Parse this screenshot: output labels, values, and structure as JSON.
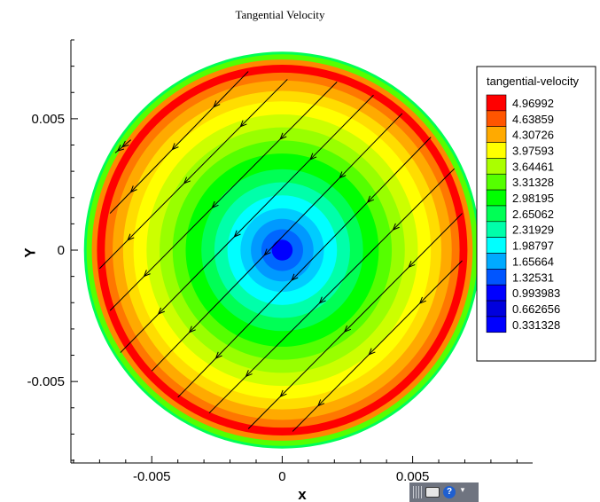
{
  "chart_data": {
    "type": "heatmap",
    "title": "Tangential Velocity",
    "xlabel": "x",
    "ylabel": "Y",
    "xlim": [
      -0.0081,
      0.0096
    ],
    "ylim": [
      -0.0081,
      0.008
    ],
    "x_ticks": [
      {
        "value": -0.005,
        "label": "-0.005"
      },
      {
        "value": 0,
        "label": "0"
      },
      {
        "value": 0.005,
        "label": "0.005"
      }
    ],
    "y_ticks": [
      {
        "value": 0.005,
        "label": "0.005"
      },
      {
        "value": 0,
        "label": "0"
      },
      {
        "value": -0.005,
        "label": "-0.005"
      }
    ],
    "domain": {
      "shape": "circle",
      "center": [
        0,
        0
      ],
      "radius": 0.0076
    },
    "contour_field": "tangential-velocity",
    "legend": {
      "title": "tangential-velocity",
      "placement": "right",
      "levels": [
        {
          "value": 4.96992,
          "label": "4.96992",
          "color": "#ff0000"
        },
        {
          "value": 4.63859,
          "label": "4.63859",
          "color": "#ff5500"
        },
        {
          "value": 4.30726,
          "label": "4.30726",
          "color": "#ffaa00"
        },
        {
          "value": 3.97593,
          "label": "3.97593",
          "color": "#ffff00"
        },
        {
          "value": 3.64461,
          "label": "3.64461",
          "color": "#aaff00"
        },
        {
          "value": 3.31328,
          "label": "3.31328",
          "color": "#55ff00"
        },
        {
          "value": 2.98195,
          "label": "2.98195",
          "color": "#00ff00"
        },
        {
          "value": 2.65062,
          "label": "2.65062",
          "color": "#00ff55"
        },
        {
          "value": 2.31929,
          "label": "2.31929",
          "color": "#00ffaa"
        },
        {
          "value": 1.98797,
          "label": "1.98797",
          "color": "#00ffff"
        },
        {
          "value": 1.65664,
          "label": "1.65664",
          "color": "#00aaff"
        },
        {
          "value": 1.32531,
          "label": "1.32531",
          "color": "#0055ff"
        },
        {
          "value": 0.993983,
          "label": "0.993983",
          "color": "#0000ff"
        },
        {
          "value": 0.662656,
          "label": "0.662656",
          "color": "#0000dd"
        },
        {
          "value": 0.331328,
          "label": "0.331328",
          "color": "#0000ff"
        }
      ]
    },
    "rings": [
      {
        "r": 0.0076,
        "color": "#00ff55"
      },
      {
        "r": 0.0075,
        "color": "#55ff00"
      },
      {
        "r": 0.0073,
        "color": "#ff8800"
      },
      {
        "r": 0.0071,
        "color": "#ff0000"
      },
      {
        "r": 0.0068,
        "color": "#ff7700"
      },
      {
        "r": 0.0065,
        "color": "#ffaa00"
      },
      {
        "r": 0.0061,
        "color": "#ffdd00"
      },
      {
        "r": 0.0057,
        "color": "#ffff00"
      },
      {
        "r": 0.0052,
        "color": "#ccff00"
      },
      {
        "r": 0.0047,
        "color": "#99ff00"
      },
      {
        "r": 0.0042,
        "color": "#55ff00"
      },
      {
        "r": 0.0037,
        "color": "#00ff00"
      },
      {
        "r": 0.0031,
        "color": "#00ff55"
      },
      {
        "r": 0.0026,
        "color": "#00ffaa"
      },
      {
        "r": 0.0021,
        "color": "#00ffff"
      },
      {
        "r": 0.0016,
        "color": "#00ccff"
      },
      {
        "r": 0.0012,
        "color": "#0099ff"
      },
      {
        "r": 0.0008,
        "color": "#0066ff"
      },
      {
        "r": 0.0004,
        "color": "#0000ff"
      }
    ],
    "streamlines": [
      {
        "from": [
          -0.0058,
          0.0042
        ],
        "to": [
          -0.0064,
          0.0037
        ]
      },
      {
        "from": [
          -0.0013,
          0.0068
        ],
        "to": [
          -0.0066,
          0.0014
        ]
      },
      {
        "from": [
          0.0002,
          0.0065
        ],
        "to": [
          -0.007,
          -0.0007
        ]
      },
      {
        "from": [
          0.0021,
          0.0064
        ],
        "to": [
          -0.0066,
          -0.0023
        ]
      },
      {
        "from": [
          0.0035,
          0.0059
        ],
        "to": [
          -0.0062,
          -0.0039
        ]
      },
      {
        "from": [
          0.0046,
          0.0052
        ],
        "to": [
          -0.005,
          -0.0046
        ]
      },
      {
        "from": [
          0.0057,
          0.0043
        ],
        "to": [
          -0.004,
          -0.0056
        ]
      },
      {
        "from": [
          0.0066,
          0.0031
        ],
        "to": [
          -0.0028,
          -0.0062
        ]
      },
      {
        "from": [
          0.0069,
          0.0014
        ],
        "to": [
          -0.0013,
          -0.0068
        ]
      },
      {
        "from": [
          0.0069,
          -0.0004
        ],
        "to": [
          0.0004,
          -0.0069
        ]
      }
    ]
  },
  "toolbar": {
    "help_glyph": "?",
    "menu_glyph": "▾"
  }
}
